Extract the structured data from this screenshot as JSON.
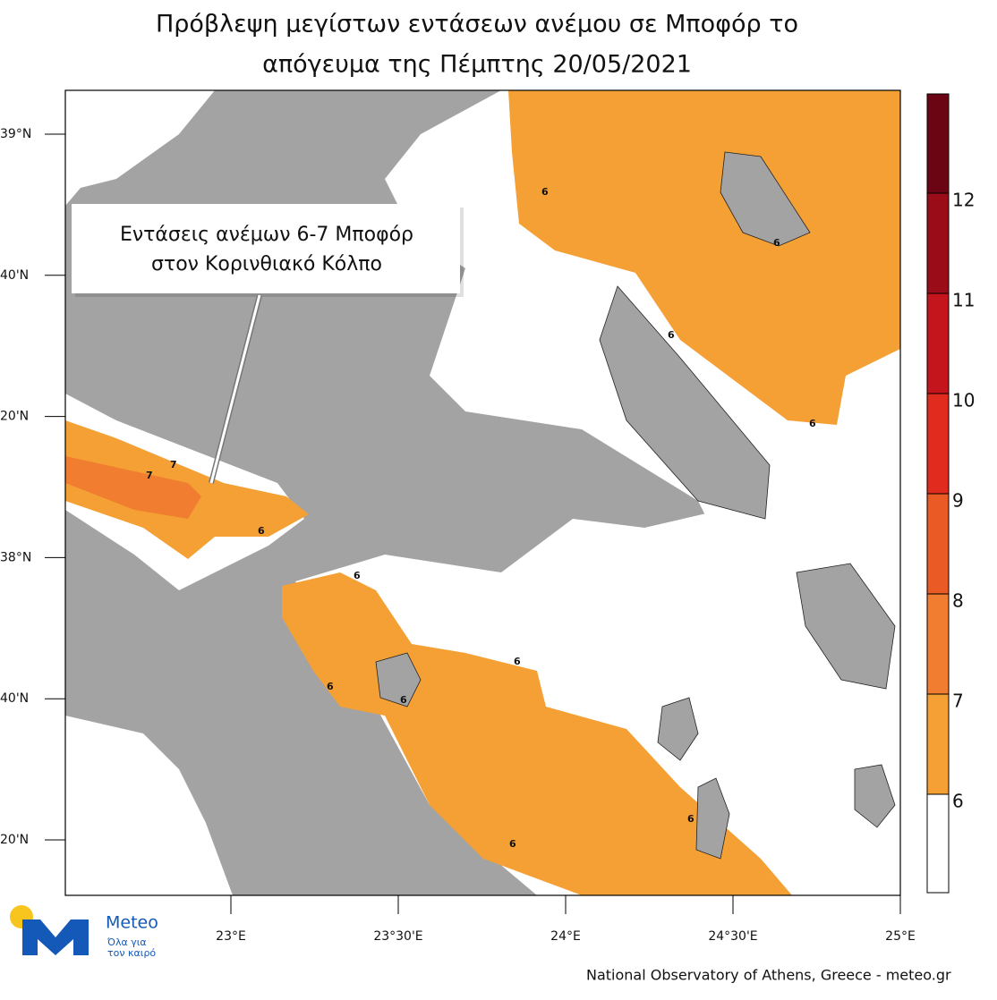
{
  "header": {
    "title_line1": "Πρόβλεψη μεγίστων εντάσεων ανέμου σε Μποφόρ το",
    "title_line2": "απόγευμα της Πέμπτης 20/05/2021"
  },
  "annotation": {
    "line1": "Εντάσεις ανέμων 6-7 Μποφόρ",
    "line2": "στον Κορινθιακό Κόλπο"
  },
  "lat_labels": [
    "39°N",
    "40'N",
    "20'N",
    "38°N",
    "40'N",
    "20'N"
  ],
  "lon_labels": [
    "23°E",
    "23°30'E",
    "24°E",
    "24°30'E",
    "25°E"
  ],
  "colorbar": {
    "labels": [
      "6",
      "7",
      "8",
      "9",
      "10",
      "11",
      "12"
    ],
    "colors": [
      "#ffffff",
      "#f5a035",
      "#f07d30",
      "#ea5a24",
      "#e02b1e",
      "#c4141c",
      "#9a0c18",
      "#6b0513"
    ]
  },
  "contour_labels": [
    "6",
    "6",
    "6",
    "7",
    "7",
    "6",
    "6",
    "6",
    "6",
    "6",
    "6",
    "6",
    "6"
  ],
  "logo": {
    "name": "Meteo",
    "tagline1": "Όλα για",
    "tagline2": "τον καιρό"
  },
  "footer": "National Observatory of Athens, Greece - meteo.gr"
}
